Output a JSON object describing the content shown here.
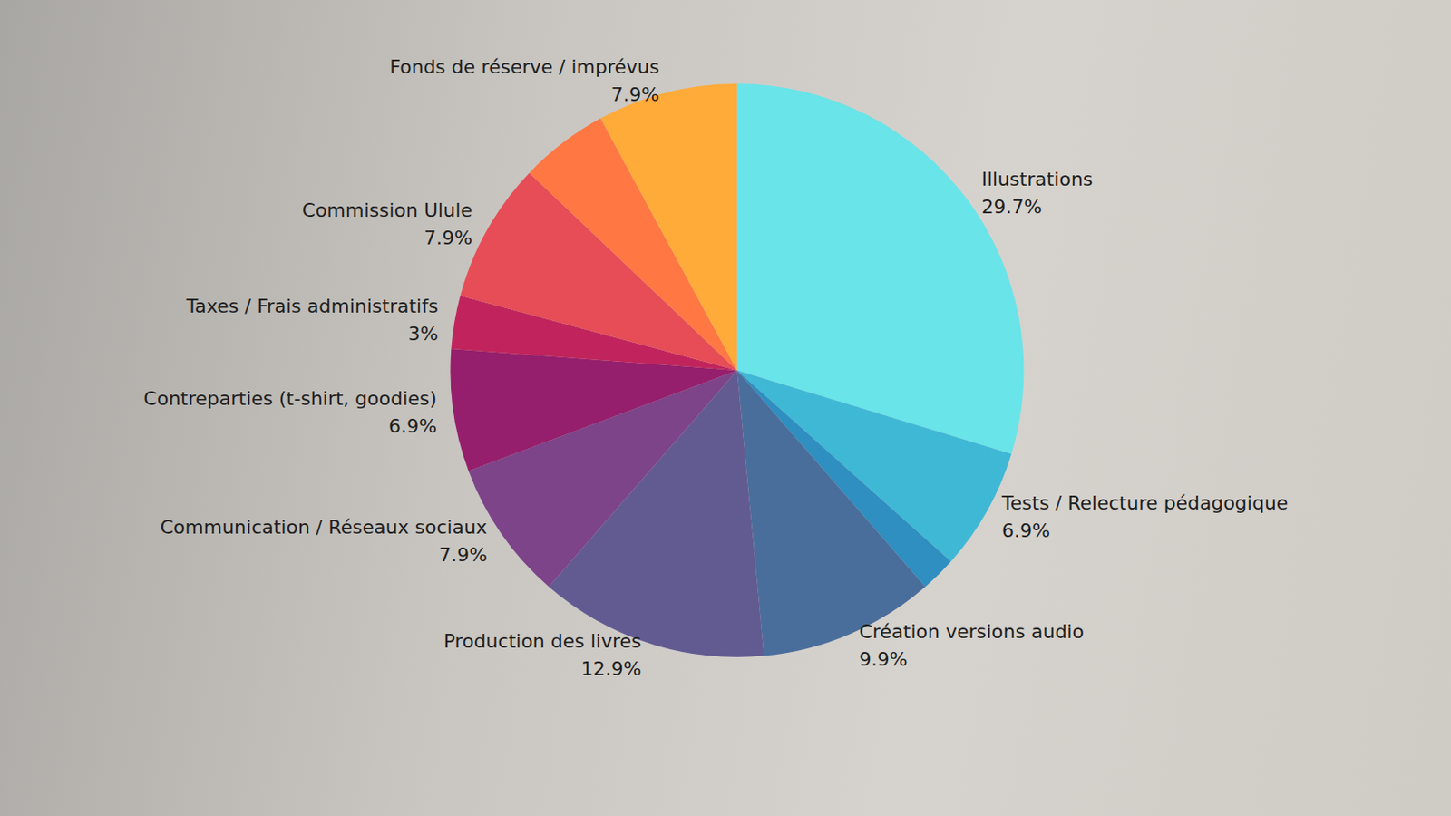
{
  "chart_data": {
    "type": "pie",
    "categories": [
      "Illustrations",
      "Tests / Relecture pédagogique",
      null,
      "Création versions audio",
      "Production des livres",
      "Communication / Réseaux sociaux",
      "Contreparties (t-shirt, goodies)",
      "Taxes / Frais administratifs",
      "Commission Ulule",
      null,
      "Fonds de réserve / imprévus"
    ],
    "values": [
      29.7,
      6.9,
      2,
      9.9,
      12.9,
      7.9,
      6.9,
      3,
      7.9,
      5,
      7.9
    ],
    "value_labels": [
      "29.7%",
      "6.9%",
      null,
      "9.9%",
      "12.9%",
      "7.9%",
      "6.9%",
      "3%",
      "7.9%",
      null,
      "7.9%"
    ],
    "colors": [
      "#69e4e9",
      "#3fb8d6",
      "#2e8fc0",
      "#4a6e9b",
      "#625b92",
      "#7d4489",
      "#951f6c",
      "#c1245c",
      "#e64d57",
      "#ff7743",
      "#ffab3a"
    ],
    "data_labels": true
  }
}
